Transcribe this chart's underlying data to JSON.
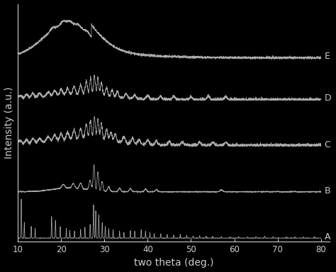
{
  "title": "",
  "xlabel": "two theta (deg.)",
  "ylabel": "Intensity (a.u.)",
  "xlim": [
    10,
    80
  ],
  "background_color": "#000000",
  "line_color": "#aaaaaa",
  "text_color": "#cccccc",
  "labels": [
    "A",
    "B",
    "C",
    "D",
    "E"
  ],
  "x_ticks": [
    10,
    20,
    30,
    40,
    50,
    60,
    70,
    80
  ],
  "xlabel_fontsize": 10,
  "ylabel_fontsize": 10,
  "label_fontsize": 9,
  "offsets": [
    0.0,
    0.2,
    0.4,
    0.6,
    0.78
  ],
  "scales": [
    0.17,
    0.12,
    0.13,
    0.11,
    0.17
  ]
}
